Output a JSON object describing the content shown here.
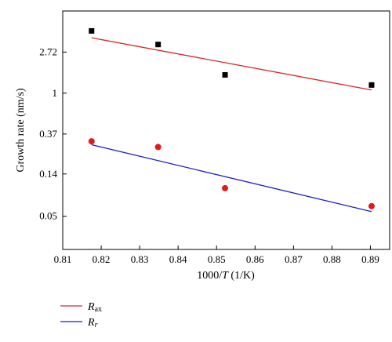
{
  "chart_data": {
    "type": "scatter",
    "xlabel_parts": [
      "1000/",
      "T",
      " (1/K)"
    ],
    "ylabel": "Growth rate (nm/s)",
    "xlim": [
      0.81,
      0.895
    ],
    "x_ticks": [
      0.81,
      0.82,
      0.83,
      0.84,
      0.85,
      0.86,
      0.87,
      0.88,
      0.89
    ],
    "y_scale": "log",
    "ylim": [
      0.0223,
      7.389
    ],
    "y_ticks": [
      0.05,
      0.14,
      0.37,
      1,
      2.72
    ],
    "y_tick_labels": [
      "0.05",
      "0.14",
      "0.37",
      "1",
      "2.72"
    ],
    "series": [
      {
        "legend_main": "R",
        "legend_sub": "ax",
        "marker": "square",
        "marker_color": "#000000",
        "line_color": "#d62728",
        "x": [
          0.8175,
          0.8348,
          0.8522,
          0.8903
        ],
        "y": [
          4.55,
          3.27,
          1.56,
          1.22
        ],
        "fit": [
          [
            0.8175,
            3.85
          ],
          [
            0.8903,
            1.08
          ]
        ]
      },
      {
        "legend_main": "R",
        "legend_sub": "r",
        "marker": "circle",
        "marker_color": "#e31a1c",
        "line_color": "#1f1fcc",
        "x": [
          0.8175,
          0.8348,
          0.8522,
          0.8903
        ],
        "y": [
          0.31,
          0.27,
          0.099,
          0.064
        ],
        "fit": [
          [
            0.8175,
            0.285
          ],
          [
            0.8903,
            0.056
          ]
        ]
      }
    ],
    "legend_position": "bottom-left"
  }
}
